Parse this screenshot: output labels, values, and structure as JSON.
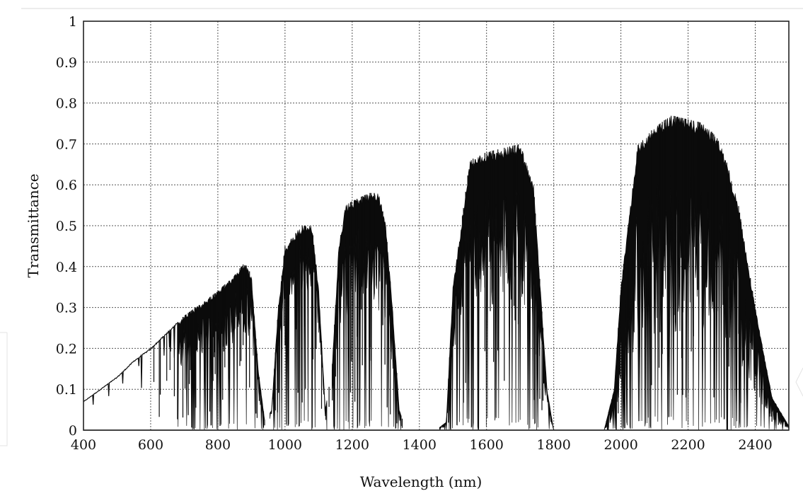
{
  "chart_data": {
    "type": "line",
    "title": "",
    "xlabel": "Wavelength (nm)",
    "ylabel": "Transmittance",
    "xlim": [
      400,
      2500
    ],
    "ylim": [
      0,
      1
    ],
    "xticks": [
      400,
      600,
      800,
      1000,
      1200,
      1400,
      1600,
      1800,
      2000,
      2200,
      2400
    ],
    "yticks": [
      0,
      0.1,
      0.2,
      0.3,
      0.4,
      0.5,
      0.6,
      0.7,
      0.8,
      0.9,
      1
    ],
    "ytick_labels": [
      "0",
      "0.1",
      "0.2",
      "0.3",
      "0.4",
      "0.5",
      "0.6",
      "0.7",
      "0.8",
      "0.9",
      "1"
    ],
    "grid": true,
    "series": [
      {
        "x": [
          400,
          450,
          500,
          550,
          600,
          650,
          700,
          750,
          800,
          850,
          880,
          900,
          920,
          940,
          960,
          980,
          1000,
          1050,
          1080,
          1100,
          1120,
          1140,
          1160,
          1180,
          1200,
          1250,
          1280,
          1300,
          1320,
          1340,
          1360,
          1400,
          1450,
          1480,
          1500,
          1550,
          1600,
          1650,
          1700,
          1740,
          1760,
          1780,
          1800,
          1850,
          1900,
          1950,
          1980,
          2000,
          2050,
          2100,
          2150,
          2200,
          2250,
          2300,
          2350,
          2400,
          2450,
          2500
        ],
        "y": [
          0.07,
          0.1,
          0.13,
          0.17,
          0.2,
          0.24,
          0.28,
          0.31,
          0.34,
          0.38,
          0.41,
          0.38,
          0.15,
          0.02,
          0.05,
          0.3,
          0.45,
          0.5,
          0.5,
          0.35,
          0.05,
          0.15,
          0.45,
          0.55,
          0.56,
          0.58,
          0.58,
          0.5,
          0.3,
          0.05,
          0,
          0,
          0,
          0.02,
          0.35,
          0.66,
          0.68,
          0.69,
          0.7,
          0.6,
          0.35,
          0.1,
          0,
          0,
          0,
          0,
          0.1,
          0.35,
          0.7,
          0.74,
          0.77,
          0.76,
          0.75,
          0.7,
          0.55,
          0.3,
          0.08,
          0.01
        ]
      }
    ]
  }
}
